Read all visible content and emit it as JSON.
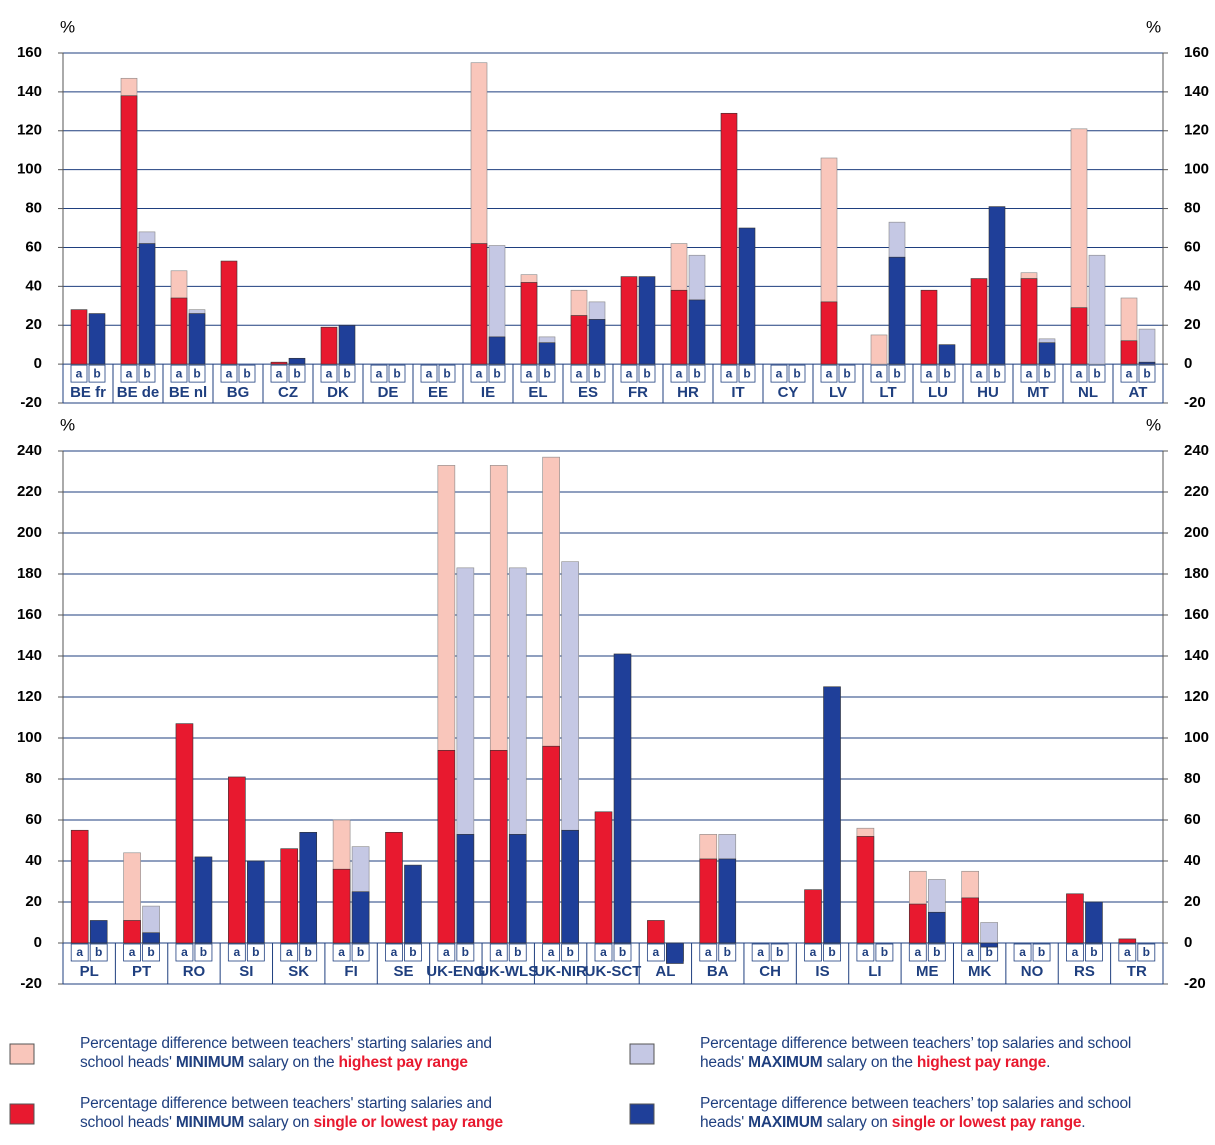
{
  "chart_data": [
    {
      "type": "bar",
      "y_label": "%",
      "y2_label": "%",
      "categories": [
        "BE fr",
        "BE de",
        "BE nl",
        "BG",
        "CZ",
        "DK",
        "DE",
        "EE",
        "IE",
        "EL",
        "ES",
        "FR",
        "HR",
        "IT",
        "CY",
        "LV",
        "LT",
        "LU",
        "HU",
        "MT",
        "NL",
        "AT"
      ],
      "sub_categories": [
        "a",
        "b"
      ],
      "series": [
        {
          "name": [
            "Percentage difference between teachers' starting salaries and",
            "school heads' ",
            "MINIMUM",
            " salary on the ",
            "highest pay range"
          ],
          "color": "#f9c6bb",
          "values": [
            null,
            147,
            48,
            null,
            null,
            null,
            null,
            null,
            155,
            46,
            38,
            null,
            62,
            null,
            null,
            106,
            15,
            null,
            null,
            47,
            121,
            34
          ]
        },
        {
          "name": [
            "Percentage difference between teachers' starting salaries and",
            "school heads' ",
            "MINIMUM",
            " salary on ",
            "single or lowest pay range"
          ],
          "color": "#e8192f",
          "values": [
            28,
            138,
            34,
            53,
            1,
            19,
            null,
            null,
            62,
            42,
            25,
            45,
            38,
            129,
            null,
            32,
            0,
            38,
            44,
            44,
            29,
            12
          ]
        },
        {
          "name": [
            "Percentage difference between teachers’ top salaries and school",
            "heads' ",
            "MAXIMUM",
            " salary on the ",
            "highest pay range",
            "."
          ],
          "color": "#c5c8e4",
          "values": [
            null,
            68,
            28,
            null,
            null,
            null,
            null,
            null,
            61,
            14,
            32,
            null,
            56,
            null,
            null,
            null,
            73,
            null,
            null,
            13,
            56,
            18
          ]
        },
        {
          "name": [
            "Percentage difference between teachers’ top salaries and school",
            "heads' ",
            "MAXIMUM",
            " salary on ",
            "single or lowest pay range",
            "."
          ],
          "color": "#1f3f99",
          "values": [
            26,
            62,
            26,
            null,
            3,
            20,
            null,
            null,
            14,
            11,
            23,
            45,
            33,
            70,
            null,
            null,
            55,
            10,
            81,
            11,
            0,
            1
          ]
        }
      ],
      "ylim": [
        -20,
        160
      ],
      "yticks": [
        -20,
        0,
        20,
        40,
        60,
        80,
        100,
        120,
        140,
        160
      ],
      "y2lim": [
        -20,
        160
      ],
      "y2ticks": [
        -20,
        0,
        20,
        40,
        60,
        80,
        100,
        120,
        140,
        160
      ],
      "grid": true
    },
    {
      "type": "bar",
      "y_label": "%",
      "y2_label": "%",
      "categories": [
        "PL",
        "PT",
        "RO",
        "SI",
        "SK",
        "FI",
        "SE",
        "UK-ENG",
        "UK-WLS",
        "UK-NIR",
        "UK-SCT",
        "AL",
        "BA",
        "CH",
        "IS",
        "LI",
        "ME",
        "MK",
        "NO",
        "RS",
        "TR"
      ],
      "sub_categories": [
        "a",
        "b"
      ],
      "series": [
        {
          "values": [
            null,
            44,
            null,
            null,
            null,
            60,
            null,
            233,
            233,
            237,
            null,
            null,
            53,
            null,
            null,
            56,
            35,
            35,
            null,
            null,
            null
          ]
        },
        {
          "values": [
            55,
            11,
            107,
            81,
            46,
            36,
            54,
            94,
            94,
            96,
            64,
            11,
            41,
            null,
            26,
            52,
            19,
            22,
            null,
            24,
            2
          ]
        },
        {
          "values": [
            null,
            18,
            null,
            null,
            null,
            47,
            null,
            183,
            183,
            186,
            null,
            null,
            53,
            null,
            null,
            null,
            31,
            10,
            null,
            null,
            null
          ]
        },
        {
          "values": [
            11,
            5,
            42,
            40,
            54,
            25,
            38,
            53,
            53,
            55,
            141,
            -10,
            41,
            null,
            125,
            null,
            15,
            -2,
            null,
            20,
            0
          ]
        }
      ],
      "ylim": [
        -20,
        240
      ],
      "yticks": [
        -20,
        0,
        20,
        40,
        60,
        80,
        100,
        120,
        140,
        160,
        180,
        200,
        220,
        240
      ],
      "y2lim": [
        -20,
        240
      ],
      "y2ticks": [
        -20,
        0,
        20,
        40,
        60,
        80,
        100,
        120,
        140,
        160,
        180,
        200,
        220,
        240
      ],
      "grid": true
    }
  ]
}
